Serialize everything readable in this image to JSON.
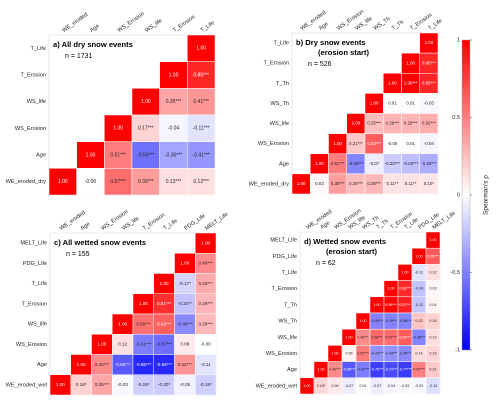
{
  "chart_data": [
    {
      "type": "heatmap",
      "title": "a) All dry snow events",
      "annotation": "n = 1731",
      "rows": [
        "T_Life",
        "T_Erosion",
        "WS_life",
        "WS_Erosion",
        "Age",
        "WE_eroded_dry"
      ],
      "columns": [
        "WE_eroded",
        "Age",
        "WS_Erosion",
        "WS_life",
        "T_Erosion",
        "T_Life"
      ],
      "values": [
        [
          null,
          null,
          null,
          null,
          null,
          1
        ],
        [
          null,
          null,
          null,
          null,
          1,
          0.85
        ],
        [
          null,
          null,
          null,
          1,
          0.35,
          0.41
        ],
        [
          null,
          null,
          1,
          0.17,
          -0.04,
          -0.11
        ],
        [
          null,
          1,
          0.51,
          -0.56,
          -0.35,
          -0.41
        ],
        [
          1,
          0,
          0.57,
          0.39,
          0.13,
          0.12
        ]
      ],
      "value_labels": [
        [
          null,
          null,
          null,
          null,
          null,
          "1.00"
        ],
        [
          null,
          null,
          null,
          null,
          "1.00",
          "0.85***"
        ],
        [
          null,
          null,
          null,
          "1.00",
          "0.35***",
          "0.41***"
        ],
        [
          null,
          null,
          "1.00",
          "0.17***",
          "-0.04",
          "-0.11***"
        ],
        [
          null,
          "1.00",
          "0.51***",
          "-0.56***",
          "-0.35***",
          "-0.41***"
        ],
        [
          "1.00",
          "-0.00",
          "0.57***",
          "0.39***",
          "0.13***",
          "0.12***"
        ]
      ]
    },
    {
      "type": "heatmap",
      "title": "b) Dry snow events",
      "subtitle": "(erosion start)",
      "annotation": "n = 526",
      "rows": [
        "T_Life",
        "T_Erosion",
        "T_Th",
        "WS_Th",
        "WS_life",
        "WS_Erosion",
        "Age",
        "WE_eroded_dry"
      ],
      "columns": [
        "WE_eroded",
        "Age",
        "WS_Erosion",
        "WS_life",
        "WS_Th",
        "T_Th",
        "T_Erosion",
        "T_Life"
      ],
      "values": [
        [
          null,
          null,
          null,
          null,
          null,
          null,
          null,
          1
        ],
        [
          null,
          null,
          null,
          null,
          null,
          null,
          1,
          0.85
        ],
        [
          null,
          null,
          null,
          null,
          null,
          1,
          1,
          0.85
        ],
        [
          null,
          null,
          null,
          null,
          1,
          0.01,
          0.01,
          -0.03
        ],
        [
          null,
          null,
          null,
          1,
          0.25,
          0.29,
          0.29,
          0.32
        ],
        [
          null,
          null,
          1,
          0.21,
          0.63,
          0,
          0.01,
          -0.04
        ],
        [
          null,
          1,
          0.51,
          -0.48,
          -0.07,
          -0.2,
          -0.25,
          -0.32
        ],
        [
          1,
          0.03,
          0.38,
          0.26,
          0.28,
          0.11,
          0.11,
          0.1
        ]
      ],
      "value_labels": [
        [
          null,
          null,
          null,
          null,
          null,
          null,
          null,
          "1.00"
        ],
        [
          null,
          null,
          null,
          null,
          null,
          null,
          "1.00",
          "0.85***"
        ],
        [
          null,
          null,
          null,
          null,
          null,
          "1.00",
          "1.00***",
          "0.85***"
        ],
        [
          null,
          null,
          null,
          null,
          "1.00",
          "0.01",
          "0.01",
          "-0.03"
        ],
        [
          null,
          null,
          null,
          "1.00",
          "0.25***",
          "0.29***",
          "0.29***",
          "0.32***"
        ],
        [
          null,
          null,
          "1.00",
          "0.21***",
          "0.63***",
          "-0.00",
          "0.01",
          "-0.04"
        ],
        [
          null,
          "1.00",
          "0.51***",
          "-0.48***",
          "-0.07",
          "-0.20***",
          "-0.25***",
          "-0.32***"
        ],
        [
          "1.00",
          "0.03",
          "0.38***",
          "0.26***",
          "0.28***",
          "0.11**",
          "0.11**",
          "0.10*"
        ]
      ]
    },
    {
      "type": "heatmap",
      "title": "c) All wetted snow events",
      "annotation": "n = 155",
      "rows": [
        "MELT_Life",
        "PDG_Life",
        "T_Life",
        "T_Erosion",
        "WS_life",
        "WS_Erosion",
        "Age",
        "WE_eroded_wet"
      ],
      "columns": [
        "WE_eroded",
        "Age",
        "WS_Erosion",
        "WS_life",
        "T_Erosion",
        "T_Life",
        "PDG_Life",
        "MELT_Life"
      ],
      "values": [
        [
          null,
          null,
          null,
          null,
          null,
          null,
          null,
          1
        ],
        [
          null,
          null,
          null,
          null,
          null,
          null,
          1,
          0.46
        ],
        [
          null,
          null,
          null,
          null,
          null,
          1,
          -0.17,
          0.33
        ],
        [
          null,
          null,
          null,
          null,
          1,
          0.81,
          -0.24,
          0.29
        ],
        [
          null,
          null,
          null,
          1,
          0.56,
          0.62,
          -0.46,
          0.28
        ],
        [
          null,
          null,
          1,
          0.12,
          -0.51,
          -0.57,
          0.08,
          0
        ],
        [
          null,
          1,
          0.46,
          -0.65,
          -0.85,
          -0.84,
          0.42,
          -0.11
        ],
        [
          1,
          0.18,
          0.35,
          -0.03,
          -0.19,
          -0.2,
          -0.05,
          -0.19
        ]
      ],
      "value_labels": [
        [
          null,
          null,
          null,
          null,
          null,
          null,
          null,
          "1.00"
        ],
        [
          null,
          null,
          null,
          null,
          null,
          null,
          "1.00",
          "0.46***"
        ],
        [
          null,
          null,
          null,
          null,
          null,
          "1.00",
          "-0.17*",
          "0.33***"
        ],
        [
          null,
          null,
          null,
          null,
          "1.00",
          "0.81***",
          "-0.24**",
          "0.29***"
        ],
        [
          null,
          null,
          null,
          "1.00",
          "0.56***",
          "0.62***",
          "-0.46***",
          "0.28***"
        ],
        [
          null,
          null,
          "1.00",
          "0.12",
          "-0.51***",
          "-0.57***",
          "0.08",
          "-0.00"
        ],
        [
          null,
          "1.00",
          "0.46***",
          "-0.65***",
          "-0.85***",
          "-0.84***",
          "0.42***",
          "-0.11"
        ],
        [
          "1.00",
          "0.18*",
          "0.35***",
          "-0.03",
          "-0.19*",
          "-0.20*",
          "-0.05",
          "-0.19*"
        ]
      ]
    },
    {
      "type": "heatmap",
      "title": "d) Wetted snow events",
      "subtitle": "(erosion start)",
      "annotation": "n = 62",
      "rows": [
        "MELT_Life",
        "PDG_Life",
        "T_Life",
        "T_Erosion",
        "T_Th",
        "WS_Th",
        "WS_life",
        "WS_Erosion",
        "Age",
        "WE_eroded_wet"
      ],
      "columns": [
        "WE_eroded",
        "Age",
        "WS_Erosion",
        "WS_life",
        "WS_Th",
        "T_Th",
        "T_Erosion",
        "T_Life",
        "PDG_Life",
        "MELT_Life"
      ],
      "values": [
        [
          null,
          null,
          null,
          null,
          null,
          null,
          null,
          null,
          null,
          1
        ],
        [
          null,
          null,
          null,
          null,
          null,
          null,
          null,
          null,
          1,
          0.65
        ],
        [
          null,
          null,
          null,
          null,
          null,
          null,
          null,
          1,
          -0.11,
          0.12
        ],
        [
          null,
          null,
          null,
          null,
          null,
          null,
          1,
          0.83,
          -0.24,
          0.03
        ],
        [
          null,
          null,
          null,
          null,
          null,
          1,
          0.98,
          0.87,
          -0.22,
          0.04
        ],
        [
          null,
          null,
          null,
          null,
          1,
          -0.49,
          -0.49,
          -0.48,
          0.23,
          0.18
        ],
        [
          null,
          null,
          null,
          1,
          0.46,
          0.58,
          0.57,
          0.64,
          -0.48,
          0.13
        ],
        [
          null,
          null,
          1,
          0.05,
          0.52,
          -0.43,
          -0.43,
          -0.46,
          0.14,
          0.16
        ],
        [
          null,
          1,
          0.46,
          -0.66,
          -0.51,
          -0.76,
          -0.71,
          -0.77,
          0.5,
          0.21
        ],
        [
          1,
          0.16,
          0.09,
          -0.07,
          0.01,
          -0.07,
          -0.04,
          -0.03,
          -0.03,
          -0.13
        ]
      ],
      "value_labels": [
        [
          null,
          null,
          null,
          null,
          null,
          null,
          null,
          null,
          null,
          "1.00"
        ],
        [
          null,
          null,
          null,
          null,
          null,
          null,
          null,
          null,
          "1.00",
          "0.65***"
        ],
        [
          null,
          null,
          null,
          null,
          null,
          null,
          null,
          "1.00",
          "-0.11",
          "0.12"
        ],
        [
          null,
          null,
          null,
          null,
          null,
          null,
          "1.00",
          "0.83***",
          "-0.24",
          "0.03"
        ],
        [
          null,
          null,
          null,
          null,
          null,
          "1.00",
          "0.98***",
          "0.87***",
          "-0.22",
          "0.04"
        ],
        [
          null,
          null,
          null,
          null,
          "1.00",
          "-0.49***",
          "-0.49***",
          "-0.48***",
          "0.23",
          "0.18"
        ],
        [
          null,
          null,
          null,
          "1.00",
          "0.46***",
          "0.58***",
          "0.57***",
          "0.64***",
          "-0.48***",
          "0.13"
        ],
        [
          null,
          null,
          "1.00",
          "0.05",
          "0.52***",
          "-0.43***",
          "-0.43***",
          "-0.46***",
          "0.14",
          "0.16"
        ],
        [
          null,
          "1.00",
          "0.46***",
          "-0.66***",
          "-0.51***",
          "-0.76***",
          "-0.71***",
          "-0.77***",
          "0.50***",
          "0.21"
        ],
        [
          "1.00",
          "0.16*",
          "0.09",
          "-0.07",
          "0.01",
          "-0.07",
          "-0.04",
          "-0.03",
          "-0.03",
          "-0.13"
        ]
      ]
    }
  ],
  "colorbar": {
    "title": "Spearman's ρ",
    "lim": [
      -1,
      1
    ],
    "ticks": [
      1,
      0.5,
      0,
      -0.5,
      -1
    ],
    "colors": [
      "#0000ff",
      "#ffffff",
      "#ff0000"
    ]
  }
}
